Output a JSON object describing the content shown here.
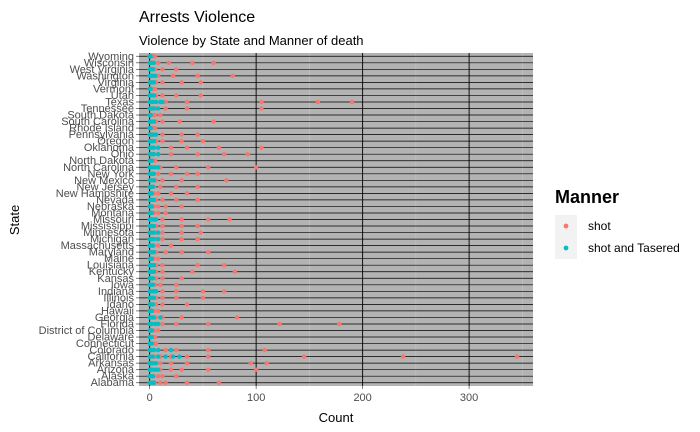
{
  "chart_data": {
    "type": "scatter",
    "title": "Arrests Violence",
    "subtitle": "Violence by State and Manner of death",
    "xlabel": "Count",
    "ylabel": "State",
    "xlim": [
      -10,
      360
    ],
    "xticks": [
      "0",
      "100",
      "200",
      "300"
    ],
    "categories": [
      "Alabama",
      "Alaska",
      "Arizona",
      "Arkansas",
      "California",
      "Colorado",
      "Connecticut",
      "Delaware",
      "District of Columbia",
      "Florida",
      "Georgia",
      "Hawaii",
      "Idaho",
      "Illinois",
      "Indiana",
      "Iowa",
      "Kansas",
      "Kentucky",
      "Louisiana",
      "Maine",
      "Maryland",
      "Massachusetts",
      "Michigan",
      "Minnesota",
      "Mississippi",
      "Missouri",
      "Montana",
      "Nebraska",
      "Nevada",
      "New Hampshire",
      "New Jersey",
      "New Mexico",
      "New York",
      "North Carolina",
      "North Dakota",
      "Ohio",
      "Oklahoma",
      "Oregon",
      "Pennsylvania",
      "Rhode Island",
      "South Carolina",
      "South Dakota",
      "Tennessee",
      "Texas",
      "Utah",
      "Vermont",
      "Virginia",
      "Washington",
      "West Virginia",
      "Wisconsin",
      "Wyoming"
    ],
    "legend_position": "right",
    "legend_title": "Manner",
    "series": [
      {
        "name": "shot",
        "color": "#F8766D",
        "points": [
          {
            "state": "Alabama",
            "x": [
              1,
              3,
              5,
              10,
              15,
              35,
              65
            ]
          },
          {
            "state": "Alaska",
            "x": [
              0,
              2,
              4,
              8,
              12,
              25
            ]
          },
          {
            "state": "Arizona",
            "x": [
              1,
              3,
              6,
              10,
              20,
              30,
              55,
              100
            ]
          },
          {
            "state": "Arkansas",
            "x": [
              1,
              3,
              5,
              10,
              20,
              35,
              95,
              110
            ]
          },
          {
            "state": "California",
            "x": [
              2,
              5,
              10,
              20,
              35,
              55,
              145,
              238,
              345
            ]
          },
          {
            "state": "Colorado",
            "x": [
              1,
              4,
              8,
              15,
              25,
              55,
              108
            ]
          },
          {
            "state": "Connecticut",
            "x": [
              0,
              2,
              4,
              6
            ]
          },
          {
            "state": "Delaware",
            "x": [
              0,
              1,
              3,
              5
            ]
          },
          {
            "state": "District of Columbia",
            "x": [
              0,
              2,
              4,
              8
            ]
          },
          {
            "state": "Florida",
            "x": [
              2,
              6,
              12,
              25,
              55,
              122,
              178
            ]
          },
          {
            "state": "Georgia",
            "x": [
              1,
              3,
              6,
              12,
              30,
              82
            ]
          },
          {
            "state": "Hawaii",
            "x": [
              0,
              2,
              4,
              8
            ]
          },
          {
            "state": "Idaho",
            "x": [
              1,
              3,
              6,
              12,
              35
            ]
          },
          {
            "state": "Illinois",
            "x": [
              1,
              3,
              6,
              12,
              25,
              50
            ]
          },
          {
            "state": "Indiana",
            "x": [
              1,
              3,
              6,
              12,
              25,
              50,
              70
            ]
          },
          {
            "state": "Iowa",
            "x": [
              0,
              2,
              5,
              10,
              25
            ]
          },
          {
            "state": "Kansas",
            "x": [
              1,
              3,
              6,
              12,
              30
            ]
          },
          {
            "state": "Kentucky",
            "x": [
              1,
              3,
              6,
              12,
              40,
              80
            ]
          },
          {
            "state": "Louisiana",
            "x": [
              1,
              3,
              6,
              12,
              45,
              70
            ]
          },
          {
            "state": "Maine",
            "x": [
              0,
              2,
              4,
              8
            ]
          },
          {
            "state": "Maryland",
            "x": [
              1,
              3,
              6,
              15,
              30,
              55
            ]
          },
          {
            "state": "Massachusetts",
            "x": [
              0,
              2,
              4,
              8,
              20
            ]
          },
          {
            "state": "Michigan",
            "x": [
              1,
              3,
              6,
              12,
              30,
              45
            ]
          },
          {
            "state": "Minnesota",
            "x": [
              1,
              3,
              6,
              12,
              30,
              48
            ]
          },
          {
            "state": "Mississippi",
            "x": [
              1,
              3,
              6,
              12,
              30,
              45
            ]
          },
          {
            "state": "Missouri",
            "x": [
              1,
              3,
              6,
              12,
              30,
              55,
              75
            ]
          },
          {
            "state": "Montana",
            "x": [
              0,
              2,
              4,
              8,
              15
            ]
          },
          {
            "state": "Nebraska",
            "x": [
              0,
              2,
              4,
              8,
              15,
              30
            ]
          },
          {
            "state": "Nevada",
            "x": [
              1,
              3,
              6,
              12,
              25,
              45
            ]
          },
          {
            "state": "New Hampshire",
            "x": [
              0,
              2,
              4,
              8,
              20,
              35
            ]
          },
          {
            "state": "New Jersey",
            "x": [
              0,
              2,
              4,
              10,
              25,
              45
            ]
          },
          {
            "state": "New Mexico",
            "x": [
              1,
              3,
              6,
              12,
              30,
              72
            ]
          },
          {
            "state": "New York",
            "x": [
              1,
              3,
              8,
              20,
              35,
              45
            ]
          },
          {
            "state": "North Carolina",
            "x": [
              1,
              4,
              10,
              25,
              55,
              100
            ]
          },
          {
            "state": "North Dakota",
            "x": [
              0,
              1,
              3,
              5
            ]
          },
          {
            "state": "Ohio",
            "x": [
              1,
              3,
              8,
              20,
              45,
              70,
              92
            ]
          },
          {
            "state": "Oklahoma",
            "x": [
              1,
              3,
              8,
              20,
              35,
              65,
              105
            ]
          },
          {
            "state": "Oregon",
            "x": [
              1,
              3,
              6,
              12,
              30,
              50
            ]
          },
          {
            "state": "Pennsylvania",
            "x": [
              1,
              3,
              6,
              12,
              30,
              45
            ]
          },
          {
            "state": "Rhode Island",
            "x": [
              0,
              1,
              3,
              5
            ]
          },
          {
            "state": "South Carolina",
            "x": [
              1,
              3,
              6,
              12,
              28,
              60
            ]
          },
          {
            "state": "South Dakota",
            "x": [
              0,
              1,
              3,
              5,
              10
            ]
          },
          {
            "state": "Tennessee",
            "x": [
              1,
              3,
              6,
              15,
              35,
              105
            ]
          },
          {
            "state": "Texas",
            "x": [
              2,
              6,
              15,
              35,
              105,
              158,
              190
            ]
          },
          {
            "state": "Utah",
            "x": [
              1,
              3,
              6,
              12,
              25,
              48
            ]
          },
          {
            "state": "Vermont",
            "x": [
              0,
              1,
              3,
              5
            ]
          },
          {
            "state": "Virginia",
            "x": [
              1,
              3,
              6,
              12,
              30,
              48
            ]
          },
          {
            "state": "Washington",
            "x": [
              1,
              3,
              8,
              22,
              45,
              78
            ]
          },
          {
            "state": "West Virginia",
            "x": [
              0,
              2,
              5,
              12,
              25
            ]
          },
          {
            "state": "Wisconsin",
            "x": [
              1,
              3,
              8,
              18,
              40,
              60
            ]
          },
          {
            "state": "Wyoming",
            "x": [
              0,
              1,
              3,
              5
            ]
          }
        ]
      },
      {
        "name": "shot and Tasered",
        "color": "#00BFC4",
        "points": [
          {
            "state": "Alabama",
            "x": [
              0,
              2,
              4
            ]
          },
          {
            "state": "Alaska",
            "x": [
              0,
              1,
              3
            ]
          },
          {
            "state": "Arizona",
            "x": [
              0,
              2,
              5,
              8
            ]
          },
          {
            "state": "Arkansas",
            "x": [
              0,
              1,
              3,
              6
            ]
          },
          {
            "state": "California",
            "x": [
              0,
              3,
              8,
              15,
              22,
              28
            ]
          },
          {
            "state": "Colorado",
            "x": [
              0,
              2,
              4,
              8,
              20
            ]
          },
          {
            "state": "Connecticut",
            "x": [
              0,
              1,
              2
            ]
          },
          {
            "state": "Delaware",
            "x": [
              0,
              1,
              2
            ]
          },
          {
            "state": "District of Columbia",
            "x": [
              0,
              1,
              2
            ]
          },
          {
            "state": "Florida",
            "x": [
              0,
              2,
              5,
              8
            ]
          },
          {
            "state": "Georgia",
            "x": [
              0,
              2,
              4,
              10
            ]
          },
          {
            "state": "Hawaii",
            "x": [
              0,
              1,
              2
            ]
          },
          {
            "state": "Idaho",
            "x": [
              0,
              1,
              3
            ]
          },
          {
            "state": "Illinois",
            "x": [
              0,
              2,
              4
            ]
          },
          {
            "state": "Indiana",
            "x": [
              0,
              2,
              4,
              6
            ]
          },
          {
            "state": "Iowa",
            "x": [
              0,
              1,
              3
            ]
          },
          {
            "state": "Kansas",
            "x": [
              0,
              1,
              3
            ]
          },
          {
            "state": "Kentucky",
            "x": [
              0,
              2,
              4
            ]
          },
          {
            "state": "Louisiana",
            "x": [
              0,
              2,
              4
            ]
          },
          {
            "state": "Maine",
            "x": [
              0,
              1,
              2
            ]
          },
          {
            "state": "Maryland",
            "x": [
              0,
              2,
              4
            ]
          },
          {
            "state": "Massachusetts",
            "x": [
              0,
              1,
              3
            ]
          },
          {
            "state": "Michigan",
            "x": [
              0,
              2,
              4,
              8
            ]
          },
          {
            "state": "Minnesota",
            "x": [
              0,
              2,
              4,
              8
            ]
          },
          {
            "state": "Mississippi",
            "x": [
              0,
              2,
              4
            ]
          },
          {
            "state": "Missouri",
            "x": [
              0,
              2,
              4,
              6
            ]
          },
          {
            "state": "Montana",
            "x": [
              0,
              1,
              2
            ]
          },
          {
            "state": "Nebraska",
            "x": [
              0,
              1,
              2
            ]
          },
          {
            "state": "Nevada",
            "x": [
              0,
              2,
              4
            ]
          },
          {
            "state": "New Hampshire",
            "x": [
              0,
              1,
              2
            ]
          },
          {
            "state": "New Jersey",
            "x": [
              0,
              1,
              3
            ]
          },
          {
            "state": "New Mexico",
            "x": [
              0,
              2,
              4
            ]
          },
          {
            "state": "New York",
            "x": [
              0,
              2,
              4
            ]
          },
          {
            "state": "North Carolina",
            "x": [
              0,
              2,
              5,
              8
            ]
          },
          {
            "state": "North Dakota",
            "x": [
              0,
              1,
              2
            ]
          },
          {
            "state": "Ohio",
            "x": [
              0,
              2,
              4,
              8
            ]
          },
          {
            "state": "Oklahoma",
            "x": [
              0,
              2,
              4,
              8
            ]
          },
          {
            "state": "Oregon",
            "x": [
              0,
              2,
              4
            ]
          },
          {
            "state": "Pennsylvania",
            "x": [
              0,
              2,
              4,
              6
            ]
          },
          {
            "state": "Rhode Island",
            "x": [
              0,
              1
            ]
          },
          {
            "state": "South Carolina",
            "x": [
              0,
              2,
              4
            ]
          },
          {
            "state": "South Dakota",
            "x": [
              0,
              1
            ]
          },
          {
            "state": "Tennessee",
            "x": [
              0,
              2,
              4,
              8
            ]
          },
          {
            "state": "Texas",
            "x": [
              0,
              3,
              6,
              10,
              12
            ]
          },
          {
            "state": "Utah",
            "x": [
              0,
              2,
              4
            ]
          },
          {
            "state": "Vermont",
            "x": [
              0,
              1
            ]
          },
          {
            "state": "Virginia",
            "x": [
              0,
              2,
              4
            ]
          },
          {
            "state": "Washington",
            "x": [
              0,
              2,
              5
            ]
          },
          {
            "state": "West Virginia",
            "x": [
              0,
              1,
              3
            ]
          },
          {
            "state": "Wisconsin",
            "x": [
              0,
              2,
              4
            ]
          },
          {
            "state": "Wyoming",
            "x": [
              0,
              1
            ]
          }
        ]
      }
    ]
  }
}
